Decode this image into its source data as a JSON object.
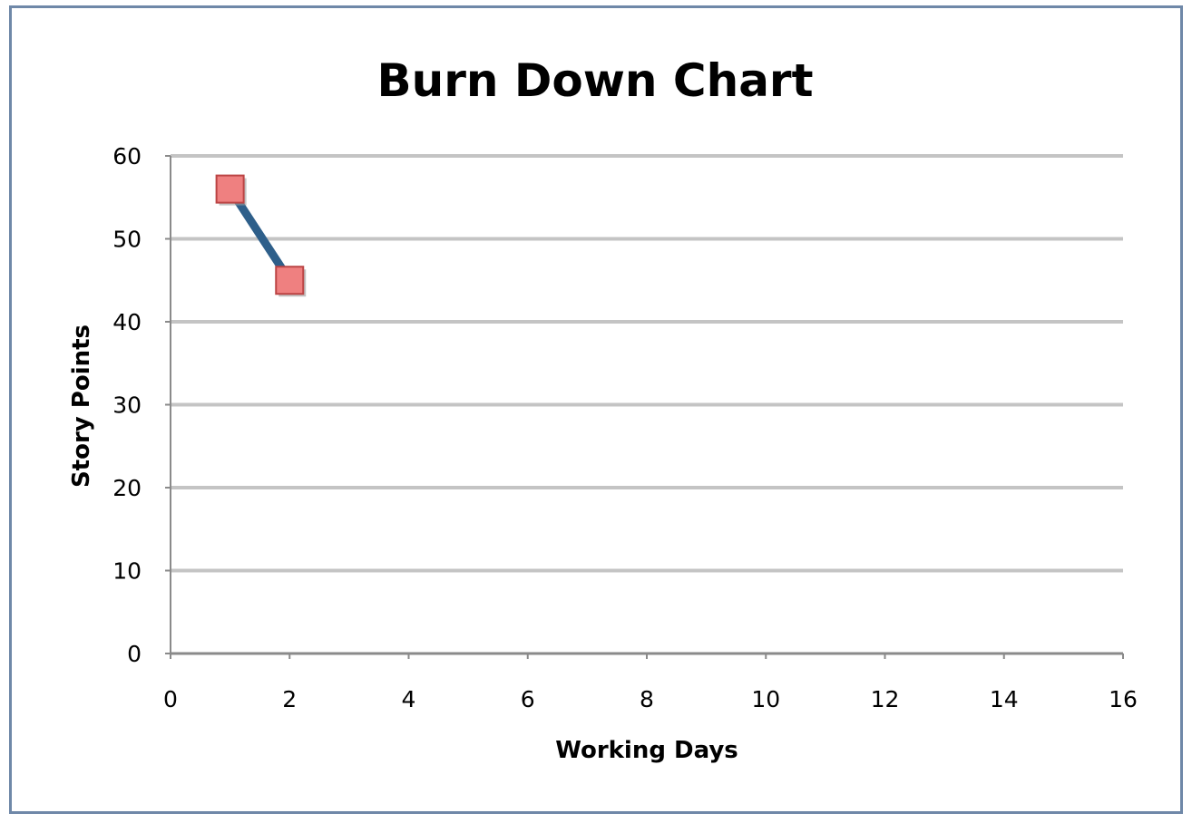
{
  "chart_data": {
    "type": "line",
    "title": "Burn Down Chart",
    "xlabel": "Working Days",
    "ylabel": "Story Points",
    "xlim": [
      0,
      16
    ],
    "ylim": [
      0,
      60
    ],
    "x_ticks": [
      "0",
      "2",
      "4",
      "6",
      "8",
      "10",
      "12",
      "14",
      "16"
    ],
    "y_ticks": [
      "0",
      "10",
      "20",
      "30",
      "40",
      "50",
      "60"
    ],
    "grid": true,
    "legend": "none",
    "series": [
      {
        "x": [
          1,
          2
        ],
        "y": [
          56,
          45
        ],
        "line_color": "#2e5f8a",
        "marker": "square",
        "marker_color": "#ef8080"
      }
    ]
  }
}
